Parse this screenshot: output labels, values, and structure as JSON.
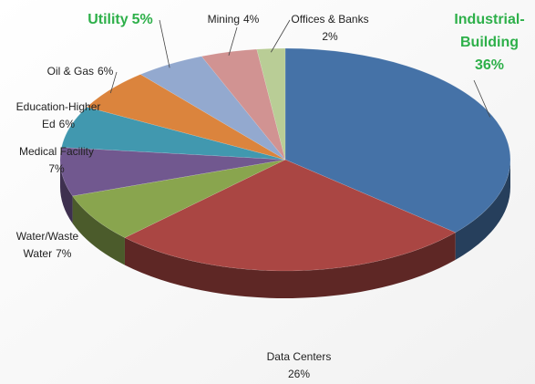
{
  "chart_data": {
    "type": "pie",
    "categories": [
      "Industrial-Building",
      "Data Centers",
      "Water/Waste Water",
      "Medical Facility",
      "Education-Higher Ed",
      "Oil & Gas",
      "Utility",
      "Mining",
      "Offices & Banks"
    ],
    "values": [
      36,
      26,
      7,
      7,
      6,
      6,
      5,
      4,
      2
    ],
    "value_labels": [
      "36%",
      "26%",
      "7%",
      "7%",
      "6%",
      "6%",
      "5%",
      "4%",
      "2%"
    ],
    "colors": [
      "#4572a7",
      "#aa4643",
      "#89a54e",
      "#71588f",
      "#4198af",
      "#db843d",
      "#93a9cf",
      "#d19392",
      "#b9cd96"
    ],
    "label_colors": [
      "#2eb04a",
      "#222222",
      "#222222",
      "#222222",
      "#222222",
      "#222222",
      "#2eb04a",
      "#222222",
      "#222222"
    ]
  }
}
